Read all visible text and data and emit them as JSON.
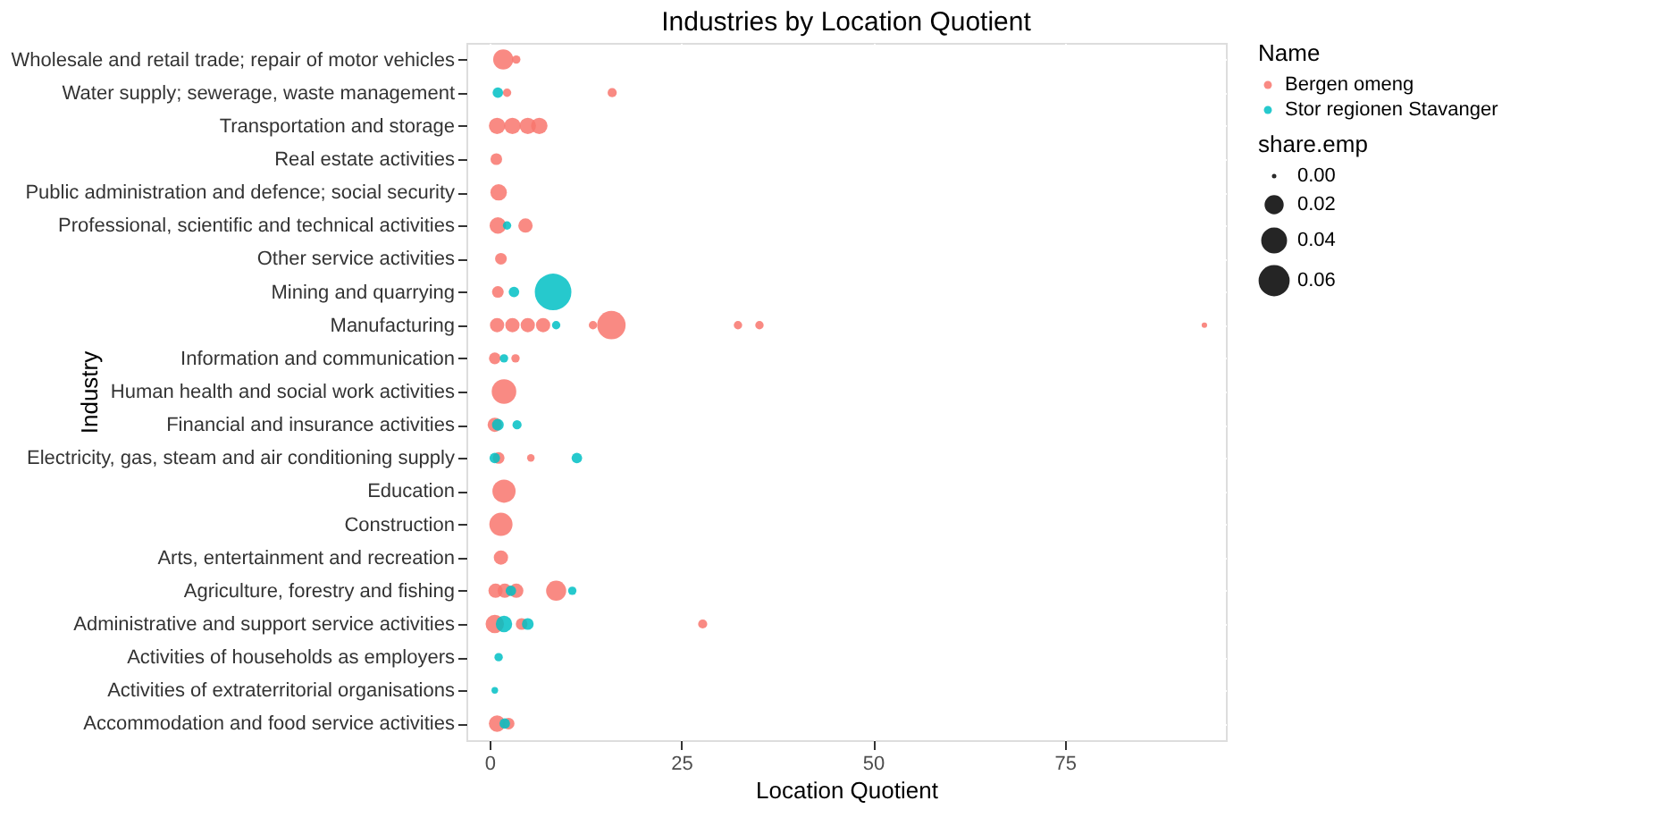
{
  "chart_data": {
    "type": "bubble",
    "title": "Industries by Location Quotient",
    "xlabel": "Location Quotient",
    "ylabel": "Industry",
    "orientation": "horizontal",
    "categories": [
      "Wholesale and retail trade; repair of motor vehicles",
      "Water supply; sewerage, waste management",
      "Transportation and storage",
      "Real estate activities",
      "Public administration and defence; social security",
      "Professional, scientific and technical activities",
      "Other service activities",
      "Mining and quarrying",
      "Manufacturing",
      "Information and communication",
      "Human health and social work activities",
      "Financial and insurance activities",
      "Electricity, gas, steam and air conditioning supply",
      "Education",
      "Construction",
      "Arts, entertainment and recreation",
      "Agriculture, forestry and fishing",
      "Administrative and support service activities",
      "Activities of households as employers",
      "Activities of extraterritorial organisations",
      "Accommodation and food service activities"
    ],
    "series": [
      {
        "name": "Bergen omeng",
        "color": "#f8766d",
        "values": [
          1.8,
          2.3,
          1,
          0.9,
          1.2,
          1.1,
          1.5,
          1.1,
          1,
          0.7,
          1.9,
          0.7,
          1.2,
          1.9,
          1.5,
          1.5,
          0.8,
          0.7,
          null,
          null,
          1
        ],
        "sizes": [
          0.03,
          0.005,
          0.02,
          0.01,
          0.02,
          0.02,
          0.01,
          0.01,
          0.015,
          0.01,
          0.045,
          0.015,
          0.01,
          0.04,
          0.04,
          0.015,
          0.015,
          0.025,
          null,
          null,
          0.02
        ]
      },
      {
        "color": "#f8766d",
        "values": [
          3.5,
          16,
          3,
          null,
          null,
          4.7,
          null,
          null,
          3,
          3.4,
          null,
          null,
          5.4,
          null,
          null,
          null,
          2,
          4.2,
          null,
          null,
          2.5
        ],
        "sizes": [
          0.005,
          0.006,
          0.02,
          null,
          null,
          0.015,
          null,
          null,
          0.015,
          0.005,
          null,
          null,
          0.004,
          null,
          null,
          null,
          0.015,
          0.01,
          null,
          null,
          0.01
        ]
      },
      {
        "color": "#f8766d",
        "values": [
          null,
          null,
          5,
          null,
          null,
          null,
          null,
          null,
          5,
          null,
          null,
          null,
          null,
          null,
          null,
          null,
          3.5,
          27.8,
          null,
          null,
          null
        ],
        "sizes": [
          null,
          null,
          0.02,
          null,
          null,
          null,
          null,
          null,
          0.015,
          null,
          null,
          null,
          null,
          null,
          null,
          null,
          0.015,
          0.006,
          null,
          null,
          null
        ]
      },
      {
        "color": "#f8766d",
        "values": [
          null,
          null,
          6.5,
          null,
          null,
          null,
          null,
          null,
          7,
          null,
          null,
          null,
          null,
          null,
          null,
          null,
          8.7,
          null,
          null,
          null,
          null
        ],
        "sizes": [
          null,
          null,
          0.02,
          null,
          null,
          null,
          null,
          null,
          0.015,
          null,
          null,
          null,
          null,
          null,
          null,
          null,
          0.03,
          null,
          null,
          null,
          null
        ]
      },
      {
        "color": "#f8766d",
        "values": [
          null,
          null,
          null,
          null,
          null,
          null,
          null,
          null,
          13.5,
          null,
          null,
          null,
          null,
          null,
          null,
          null,
          null,
          null,
          null,
          null,
          null
        ],
        "sizes": [
          null,
          null,
          null,
          null,
          null,
          null,
          null,
          null,
          0.005,
          null,
          null,
          null,
          null,
          null,
          null,
          null,
          null,
          null,
          null,
          null,
          null
        ]
      },
      {
        "color": "#f8766d",
        "values": [
          null,
          null,
          null,
          null,
          null,
          null,
          null,
          null,
          15.9,
          null,
          null,
          null,
          null,
          null,
          null,
          null,
          null,
          null,
          null,
          null,
          null
        ],
        "sizes": [
          null,
          null,
          null,
          null,
          null,
          null,
          null,
          null,
          0.06,
          null,
          null,
          null,
          null,
          null,
          null,
          null,
          null,
          null,
          null,
          null,
          null
        ]
      },
      {
        "color": "#f8766d",
        "values": [
          null,
          null,
          null,
          null,
          null,
          null,
          null,
          null,
          32.4,
          null,
          null,
          null,
          null,
          null,
          null,
          null,
          null,
          null,
          null,
          null,
          null
        ],
        "sizes": [
          null,
          null,
          null,
          null,
          null,
          null,
          null,
          null,
          0.005,
          null,
          null,
          null,
          null,
          null,
          null,
          null,
          null,
          null,
          null,
          null,
          null
        ]
      },
      {
        "color": "#f8766d",
        "values": [
          null,
          null,
          null,
          null,
          null,
          null,
          null,
          null,
          35.2,
          null,
          null,
          null,
          null,
          null,
          null,
          null,
          null,
          null,
          null,
          null,
          null
        ],
        "sizes": [
          null,
          null,
          null,
          null,
          null,
          null,
          null,
          null,
          0.005,
          null,
          null,
          null,
          null,
          null,
          null,
          null,
          null,
          null,
          null,
          null,
          null
        ]
      },
      {
        "color": "#f8766d",
        "values": [
          null,
          null,
          null,
          null,
          null,
          null,
          null,
          null,
          93.2,
          null,
          null,
          null,
          null,
          null,
          null,
          null,
          null,
          null,
          null,
          null,
          null
        ],
        "sizes": [
          null,
          null,
          null,
          null,
          null,
          null,
          null,
          null,
          0.002,
          null,
          null,
          null,
          null,
          null,
          null,
          null,
          null,
          null,
          null,
          null,
          null
        ]
      },
      {
        "name": "Stor regionen Stavanger",
        "color": "#00bfc4",
        "values": [
          null,
          1.1,
          null,
          null,
          null,
          2.3,
          null,
          3.2,
          8.7,
          1.9,
          null,
          1.1,
          0.7,
          null,
          null,
          null,
          2.8,
          1.9,
          1.2,
          0.7,
          2
        ],
        "sizes": [
          null,
          0.008,
          null,
          null,
          null,
          0.005,
          null,
          0.008,
          0.005,
          0.005,
          null,
          0.01,
          0.008,
          null,
          null,
          null,
          0.008,
          0.02,
          0.005,
          0.003,
          0.008
        ]
      },
      {
        "color": "#00bfc4",
        "values": [
          null,
          null,
          null,
          null,
          null,
          null,
          null,
          8.3,
          null,
          null,
          null,
          3.6,
          11.4,
          null,
          null,
          null,
          10.8,
          5,
          null,
          null,
          null
        ],
        "sizes": [
          null,
          null,
          null,
          null,
          null,
          null,
          null,
          0.1,
          null,
          null,
          null,
          0.006,
          0.008,
          null,
          null,
          null,
          0.005,
          0.01,
          null,
          null,
          null
        ]
      }
    ],
    "xlim": [
      -3,
      96
    ],
    "xticks": [
      0,
      25,
      50,
      75
    ],
    "size_legend": [
      {
        "value": 0,
        "label": "0.00"
      },
      {
        "value": 0.02,
        "label": "0.02"
      },
      {
        "value": 0.04,
        "label": "0.04"
      },
      {
        "value": 0.06,
        "label": "0.06"
      }
    ],
    "legend_title": "Name",
    "clabel": "share.emp",
    "marker": "circle",
    "grid": true,
    "legend": "right"
  }
}
